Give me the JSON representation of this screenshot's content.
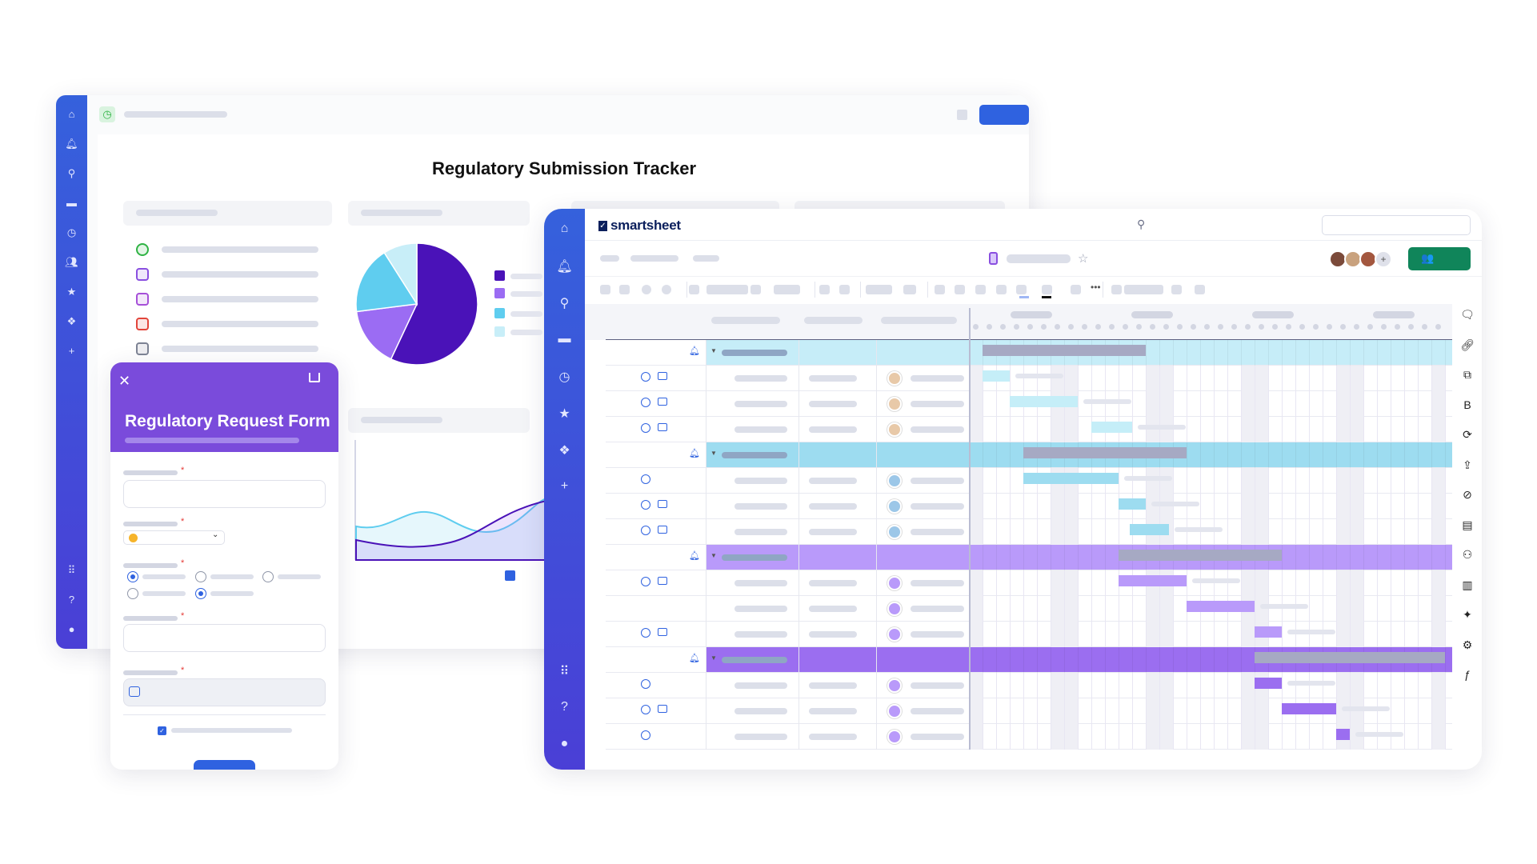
{
  "dashboard": {
    "title": "Regulatory Submission Tracker",
    "sidebar_icons": [
      "home-icon",
      "bell-icon",
      "search-icon",
      "folder-icon",
      "clock-icon",
      "contacts-icon",
      "star-icon",
      "solutions-icon",
      "plus-icon",
      "apps-icon",
      "help-icon",
      "profile-icon"
    ],
    "list_icons": [
      {
        "name": "clock-icon",
        "color": "#2fb344"
      },
      {
        "name": "sheet-icon",
        "color": "#8a4fe0"
      },
      {
        "name": "report-icon",
        "color": "#a64fd8"
      },
      {
        "name": "form-icon",
        "color": "#e2453b"
      },
      {
        "name": "folder-icon",
        "color": "#7c8293"
      }
    ],
    "pie": {
      "values": [
        57,
        16,
        18,
        9
      ],
      "colors": [
        "#4a12b8",
        "#9b6cf3",
        "#5fcdef",
        "#c8eef8"
      ]
    },
    "area_chart": {
      "series_colors": [
        "#5fcdef",
        "#4a12b8"
      ]
    },
    "primary_color": "#2f62e0"
  },
  "form": {
    "title": "Regulatory Request Form",
    "header_color": "#7a4bdb",
    "select_dot_color": "#f6b42b",
    "radio_selected": [
      0,
      4
    ],
    "checkbox_checked": true
  },
  "app": {
    "brand": "smartsheet",
    "share_color": "#10855a",
    "right_panel_icons": [
      "comment-icon",
      "attachment-icon",
      "proofs-icon",
      "briefcase-icon",
      "update-requests-icon",
      "publish-icon",
      "activity-icon",
      "summary-icon",
      "people-icon",
      "dashboard-icon",
      "ai-chart-icon",
      "automation-icon",
      "ai-formula-icon"
    ]
  },
  "gantt": {
    "colors": {
      "g1_summary": "#c6edf8",
      "g1_task": "#c5eef8",
      "g2_summary": "#9ddcf0",
      "g2_task": "#9ddcf0",
      "g3_summary": "#b99afa",
      "g3_task": "#b99afa",
      "g4_summary": "#9b6ef0",
      "g4_task": "#9b6ef0",
      "summary_bar": "#a6a9c3"
    },
    "rows": [
      {
        "group": "g1",
        "summary": true,
        "start": 1,
        "end": 13
      },
      {
        "group": "g1",
        "start": 1,
        "end": 3,
        "comments": 2
      },
      {
        "group": "g1",
        "start": 3,
        "end": 8,
        "comments": 2
      },
      {
        "group": "g1",
        "start": 9,
        "end": 12,
        "comments": 2
      },
      {
        "group": "g2",
        "summary": true,
        "start": 4,
        "end": 16
      },
      {
        "group": "g2",
        "start": 4,
        "end": 11,
        "comments": 1
      },
      {
        "group": "g2",
        "start": 11,
        "end": 13,
        "comments": 2
      },
      {
        "group": "g2",
        "start": 11.8,
        "end": 14.7,
        "comments": 2
      },
      {
        "group": "g3",
        "summary": true,
        "start": 11,
        "end": 23
      },
      {
        "group": "g3",
        "start": 11,
        "end": 16,
        "comments": 2
      },
      {
        "group": "g3",
        "start": 16,
        "end": 21,
        "comments": 0
      },
      {
        "group": "g3",
        "start": 21,
        "end": 23,
        "comments": 2
      },
      {
        "group": "g4",
        "summary": true,
        "start": 21,
        "end": 35
      },
      {
        "group": "g4",
        "start": 21,
        "end": 23,
        "comments": 1
      },
      {
        "group": "g4",
        "start": 23,
        "end": 27,
        "comments": 2
      },
      {
        "group": "g4",
        "start": 27,
        "end": 28,
        "comments": 1
      }
    ]
  }
}
